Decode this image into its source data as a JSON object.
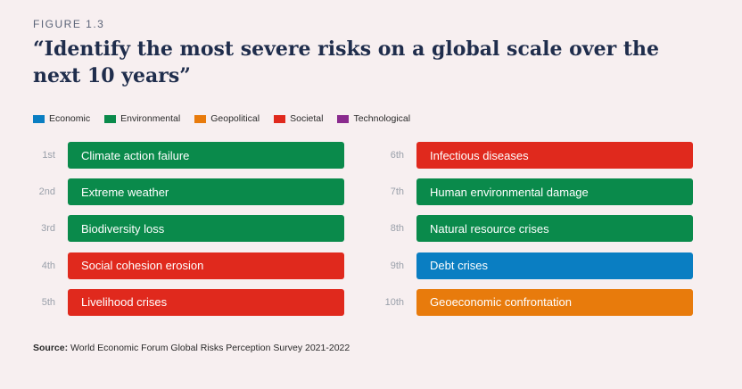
{
  "figure_label": "FIGURE 1.3",
  "title": "“Identify the most severe risks on a global scale over the next 10 years”",
  "source_label": "Source:",
  "source_text": "World Economic Forum Global Risks Perception Survey 2021-2022",
  "colors": {
    "Economic": "#0a7ec2",
    "Environmental": "#0a8a4b",
    "Geopolitical": "#e87b0c",
    "Societal": "#e0291d",
    "Technological": "#8a2b8e"
  },
  "chart_data": {
    "type": "table",
    "title": "“Identify the most severe risks on a global scale over the next 10 years”",
    "legend": [
      "Economic",
      "Environmental",
      "Geopolitical",
      "Societal",
      "Technological"
    ],
    "legend_position": "top-left",
    "risks": [
      {
        "rank": "1st",
        "name": "Climate action failure",
        "category": "Environmental"
      },
      {
        "rank": "2nd",
        "name": "Extreme weather",
        "category": "Environmental"
      },
      {
        "rank": "3rd",
        "name": "Biodiversity loss",
        "category": "Environmental"
      },
      {
        "rank": "4th",
        "name": "Social cohesion erosion",
        "category": "Societal"
      },
      {
        "rank": "5th",
        "name": "Livelihood crises",
        "category": "Societal"
      },
      {
        "rank": "6th",
        "name": "Infectious diseases",
        "category": "Societal"
      },
      {
        "rank": "7th",
        "name": "Human environmental damage",
        "category": "Environmental"
      },
      {
        "rank": "8th",
        "name": "Natural resource crises",
        "category": "Environmental"
      },
      {
        "rank": "9th",
        "name": "Debt crises",
        "category": "Economic"
      },
      {
        "rank": "10th",
        "name": "Geoeconomic confrontation",
        "category": "Geopolitical"
      }
    ]
  }
}
